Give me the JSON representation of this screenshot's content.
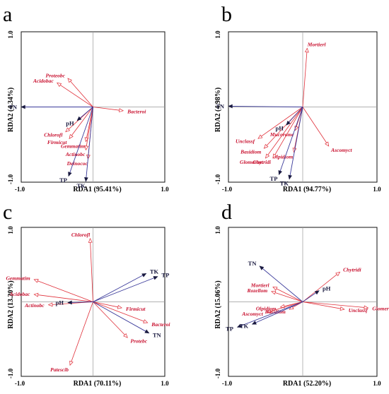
{
  "colors": {
    "species": "#e0303a",
    "env": "#3a3a9a",
    "frame": "#111111",
    "zero_line": "#999999"
  },
  "chart_data": [
    {
      "type": "scatter",
      "panel": "a",
      "xlabel": "RDA1 (95.41%)",
      "ylabel": "RDA2 (4.34%)",
      "xlim": [
        -1.0,
        1.0
      ],
      "ylim": [
        -1.0,
        1.0
      ],
      "ticks": {
        "xmin": "-1.0",
        "xmax": "1.0",
        "ymin": "-1.0",
        "ymax": "1.0"
      },
      "env_vectors": [
        {
          "label": "TN",
          "x": -1.0,
          "y": 0.0
        },
        {
          "label": "pH",
          "x": -0.22,
          "y": -0.18
        },
        {
          "label": "TP",
          "x": -0.34,
          "y": -0.92
        },
        {
          "label": "TK",
          "x": -0.1,
          "y": -0.99
        }
      ],
      "species_vectors": [
        {
          "label": "Proteobc",
          "x": -0.35,
          "y": 0.38
        },
        {
          "label": "Acidobac",
          "x": -0.5,
          "y": 0.32
        },
        {
          "label": "Bacteroi",
          "x": 0.42,
          "y": -0.05
        },
        {
          "label": "Chlorofl",
          "x": -0.38,
          "y": -0.33
        },
        {
          "label": "Firmicut",
          "x": -0.33,
          "y": -0.42
        },
        {
          "label": "Gemmatim",
          "x": -0.1,
          "y": -0.46
        },
        {
          "label": "Actinobc",
          "x": -0.1,
          "y": -0.57
        },
        {
          "label": "Deinococ",
          "x": -0.07,
          "y": -0.69
        }
      ]
    },
    {
      "type": "scatter",
      "panel": "b",
      "xlabel": "RDA1 (94.77%)",
      "ylabel": "RDA2 (4.98%)",
      "xlim": [
        -1.0,
        1.0
      ],
      "ylim": [
        -1.0,
        1.0
      ],
      "ticks": {
        "xmin": "-1.0",
        "xmax": "1.0",
        "ymin": "-1.0",
        "ymax": "1.0"
      },
      "env_vectors": [
        {
          "label": "TN",
          "x": -1.0,
          "y": 0.01
        },
        {
          "label": "pH",
          "x": -0.22,
          "y": -0.24
        },
        {
          "label": "TP",
          "x": -0.32,
          "y": -0.9
        },
        {
          "label": "TK",
          "x": -0.18,
          "y": -0.96
        }
      ],
      "species_vectors": [
        {
          "label": "Mortierl",
          "x": 0.06,
          "y": 0.78
        },
        {
          "label": "Unclassf",
          "x": -0.6,
          "y": -0.42
        },
        {
          "label": "Mucoromc",
          "x": -0.1,
          "y": -0.31
        },
        {
          "label": "Basidiom",
          "x": -0.52,
          "y": -0.55
        },
        {
          "label": "Olpidiom",
          "x": -0.12,
          "y": -0.6
        },
        {
          "label": "Ascomyct",
          "x": 0.35,
          "y": -0.52
        },
        {
          "label": "Chytridi",
          "x": -0.4,
          "y": -0.68
        },
        {
          "label": "Glomerom",
          "x": -0.5,
          "y": -0.68
        }
      ]
    },
    {
      "type": "scatter",
      "panel": "c",
      "xlabel": "RDA1 (70.11%)",
      "ylabel": "RDA2 (13.20%)",
      "xlim": [
        -1.0,
        1.0
      ],
      "ylim": [
        -1.0,
        1.0
      ],
      "ticks": {
        "xmin": "-1.0",
        "xmax": "1.0",
        "ymin": "-1.0",
        "ymax": "1.0"
      },
      "env_vectors": [
        {
          "label": "TK",
          "x": 0.74,
          "y": 0.38
        },
        {
          "label": "TP",
          "x": 0.9,
          "y": 0.34
        },
        {
          "label": "pH",
          "x": -0.35,
          "y": -0.01
        },
        {
          "label": "TN",
          "x": 0.78,
          "y": -0.42
        }
      ],
      "species_vectors": [
        {
          "label": "Chlorofl",
          "x": -0.04,
          "y": 0.85
        },
        {
          "label": "Gemmatim",
          "x": -0.82,
          "y": 0.3
        },
        {
          "label": "Acidobac",
          "x": -0.82,
          "y": 0.1
        },
        {
          "label": "Actinobc",
          "x": -0.62,
          "y": -0.04
        },
        {
          "label": "Firmicut",
          "x": 0.4,
          "y": -0.08
        },
        {
          "label": "Bacteroi",
          "x": 0.76,
          "y": -0.28
        },
        {
          "label": "Patescib",
          "x": -0.32,
          "y": -0.85
        },
        {
          "label": "Protebc",
          "x": 0.48,
          "y": -0.48
        }
      ]
    },
    {
      "type": "scatter",
      "panel": "d",
      "xlabel": "RDA1 (52.20%)",
      "ylabel": "RDA2 (15.06%)",
      "xlim": [
        -1.0,
        1.0
      ],
      "ylim": [
        -1.0,
        1.0
      ],
      "ticks": {
        "xmin": "-1.0",
        "xmax": "1.0",
        "ymin": "-1.0",
        "ymax": "1.0"
      },
      "env_vectors": [
        {
          "label": "TN",
          "x": -0.58,
          "y": 0.48
        },
        {
          "label": "pH",
          "x": 0.22,
          "y": 0.15
        },
        {
          "label": "TP",
          "x": -0.88,
          "y": -0.34
        },
        {
          "label": "TK",
          "x": -0.68,
          "y": -0.3
        }
      ],
      "species_vectors": [
        {
          "label": "Chytridi",
          "x": 0.5,
          "y": 0.4
        },
        {
          "label": "Mortierl",
          "x": -0.4,
          "y": 0.2
        },
        {
          "label": "Rozellom",
          "x": -0.42,
          "y": 0.14
        },
        {
          "label": "Olpidiom",
          "x": -0.3,
          "y": -0.07
        },
        {
          "label": "Ascomyct",
          "x": -0.48,
          "y": -0.14
        },
        {
          "label": "Basidiom",
          "x": -0.18,
          "y": -0.1
        },
        {
          "label": "Unclassf",
          "x": 0.56,
          "y": -0.1
        },
        {
          "label": "Glomerom",
          "x": 0.88,
          "y": -0.08
        }
      ]
    }
  ]
}
